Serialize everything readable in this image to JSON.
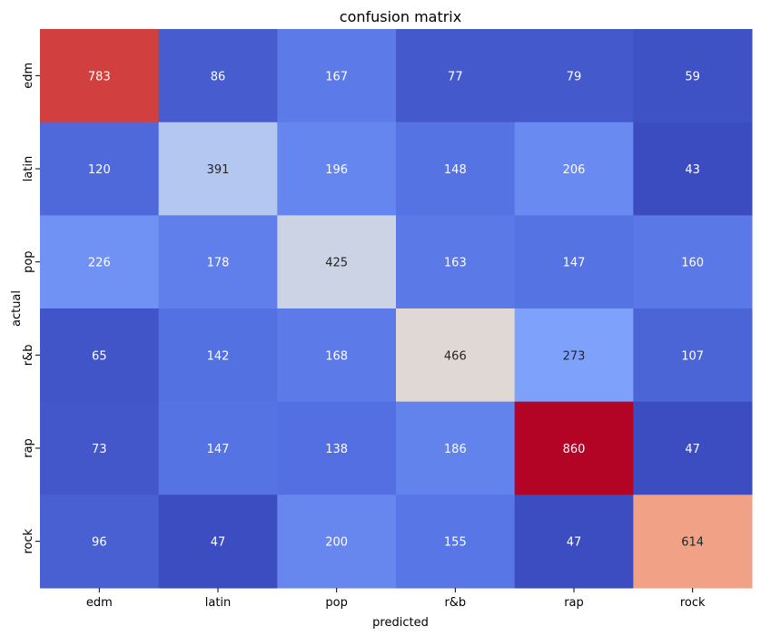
{
  "chart_data": {
    "type": "heatmap",
    "title": "confusion matrix",
    "xlabel": "predicted",
    "ylabel": "actual",
    "x_categories": [
      "edm",
      "latin",
      "pop",
      "r&b",
      "rap",
      "rock"
    ],
    "y_categories": [
      "edm",
      "latin",
      "pop",
      "r&b",
      "rap",
      "rock"
    ],
    "values": [
      [
        783,
        86,
        167,
        77,
        79,
        59
      ],
      [
        120,
        391,
        196,
        148,
        206,
        43
      ],
      [
        226,
        178,
        425,
        163,
        147,
        160
      ],
      [
        65,
        142,
        168,
        466,
        273,
        107
      ],
      [
        73,
        147,
        138,
        186,
        860,
        47
      ],
      [
        96,
        47,
        200,
        155,
        47,
        614
      ]
    ],
    "colormap": "coolwarm",
    "value_range": [
      43,
      860
    ],
    "annotations": true,
    "colorbar": false
  }
}
